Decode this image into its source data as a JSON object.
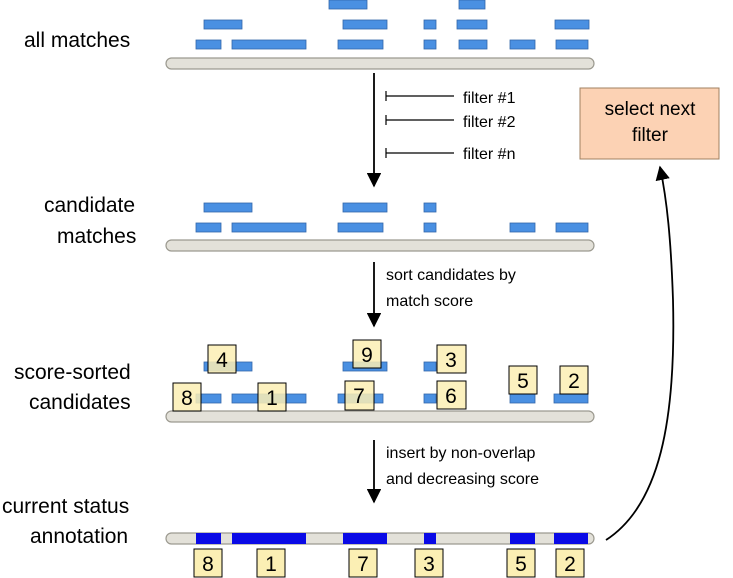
{
  "stages": {
    "all_matches": "all matches",
    "candidate": [
      "candidate",
      "matches"
    ],
    "sorted": [
      "score-sorted",
      "candidates"
    ],
    "status": [
      "current status",
      "annotation"
    ]
  },
  "filters": [
    "filter #1",
    "filter #2",
    "filter #n"
  ],
  "steps": {
    "sort": [
      "sort candidates by",
      "match score"
    ],
    "insert": [
      "insert by non-overlap",
      "and decreasing score"
    ]
  },
  "next_filter": [
    "select next",
    "filter"
  ],
  "sorted_ranks": [
    "4",
    "9",
    "3",
    "8",
    "1",
    "7",
    "6",
    "5",
    "2"
  ],
  "final_ranks": [
    "8",
    "1",
    "7",
    "3",
    "5",
    "2"
  ],
  "colors": {
    "match": "#4a90e2",
    "selected": "#0a0ae6",
    "track": "#e3e1d9",
    "rank_box": "#fbefb4",
    "next_box": "#fcd2b4"
  }
}
